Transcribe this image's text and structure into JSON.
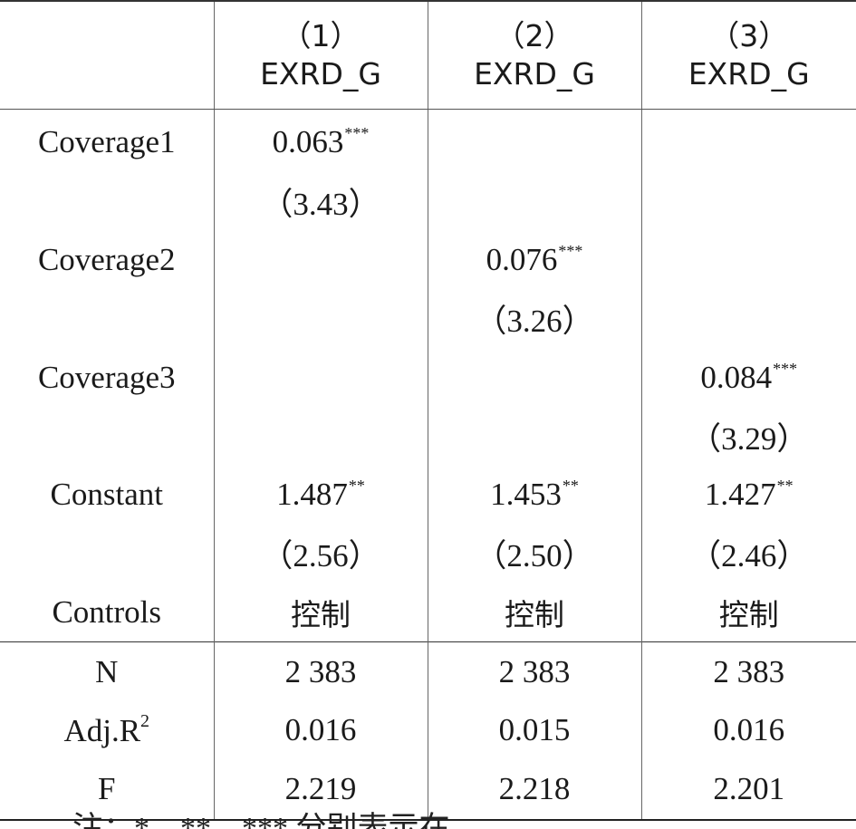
{
  "header": {
    "models": [
      {
        "num": "（1）",
        "dep": "EXRD_G"
      },
      {
        "num": "（2）",
        "dep": "EXRD_G"
      },
      {
        "num": "（3）",
        "dep": "EXRD_G"
      }
    ]
  },
  "rows": {
    "coverage1": {
      "label": "Coverage1",
      "m1": "0.063",
      "m1_sig": "***",
      "m1_t": "（3.43）"
    },
    "coverage2": {
      "label": "Coverage2",
      "m2": "0.076",
      "m2_sig": "***",
      "m2_t": "（3.26）"
    },
    "coverage3": {
      "label": "Coverage3",
      "m3": "0.084",
      "m3_sig": "***",
      "m3_t": "（3.29）"
    },
    "constant": {
      "label": "Constant",
      "m1": "1.487",
      "m1_sig": "**",
      "m1_t": "（2.56）",
      "m2": "1.453",
      "m2_sig": "**",
      "m2_t": "（2.50）",
      "m3": "1.427",
      "m3_sig": "**",
      "m3_t": "（2.46）"
    },
    "controls": {
      "label": "Controls",
      "m1": "控制",
      "m2": "控制",
      "m3": "控制"
    },
    "n": {
      "label": "N",
      "m1": "2 383",
      "m2": "2 383",
      "m3": "2 383"
    },
    "adjr2": {
      "label": "Adj.R",
      "label_sup": "2",
      "m1": "0.016",
      "m2": "0.015",
      "m3": "0.016"
    },
    "f": {
      "label": "F",
      "m1": "2.219",
      "m2": "2.218",
      "m3": "2.201"
    }
  },
  "footnote": "注：*、**、*** 分别表示在"
}
